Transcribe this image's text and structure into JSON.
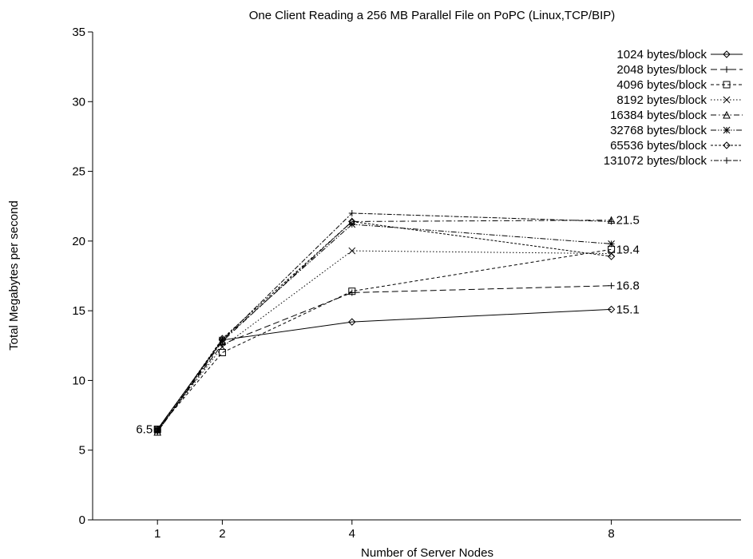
{
  "chart_data": {
    "type": "line",
    "title": "One Client Reading a 256 MB Parallel File on PoPC (Linux,TCP/BIP)",
    "xlabel": "Number of Server Nodes",
    "ylabel": "Total Megabytes per second",
    "x": [
      1,
      2,
      4,
      8
    ],
    "xticks": [
      "1",
      "2",
      "4",
      "8"
    ],
    "xlim": [
      0,
      10
    ],
    "ylim": [
      0,
      35
    ],
    "yticks": [
      "0",
      "5",
      "10",
      "15",
      "20",
      "25",
      "30",
      "35"
    ],
    "grid": false,
    "legend_position": "top-right",
    "series": [
      {
        "name": "1024 bytes/block",
        "values": [
          6.5,
          12.9,
          14.2,
          15.1
        ],
        "marker": "diamond",
        "dash": "solid"
      },
      {
        "name": "2048 bytes/block",
        "values": [
          6.4,
          12.6,
          16.3,
          16.8
        ],
        "marker": "plus",
        "dash": "longdash"
      },
      {
        "name": "4096 bytes/block",
        "values": [
          6.5,
          12.0,
          16.4,
          19.4
        ],
        "marker": "square",
        "dash": "shortdash"
      },
      {
        "name": "8192 bytes/block",
        "values": [
          6.4,
          12.4,
          19.3,
          19.1
        ],
        "marker": "cross",
        "dash": "dotted"
      },
      {
        "name": "16384 bytes/block",
        "values": [
          6.3,
          12.8,
          21.4,
          21.5
        ],
        "marker": "triangle",
        "dash": "dashdot"
      },
      {
        "name": "32768 bytes/block",
        "values": [
          6.5,
          12.9,
          21.2,
          19.8
        ],
        "marker": "star",
        "dash": "dashdotdot"
      },
      {
        "name": "65536 bytes/block",
        "values": [
          6.4,
          13.0,
          21.4,
          18.9
        ],
        "marker": "diamond",
        "dash": "shortdash2"
      },
      {
        "name": "131072 bytes/block",
        "values": [
          6.3,
          12.9,
          22.0,
          21.4
        ],
        "marker": "plus",
        "dash": "dotdash"
      }
    ],
    "annotations": [
      {
        "text": "6.5",
        "x": 1,
        "y": 6.5,
        "side": "left"
      },
      {
        "text": "21.5",
        "x": 8,
        "y": 21.5,
        "side": "right"
      },
      {
        "text": "19.4",
        "x": 8,
        "y": 19.4,
        "side": "right"
      },
      {
        "text": "16.8",
        "x": 8,
        "y": 16.8,
        "side": "right"
      },
      {
        "text": "15.1",
        "x": 8,
        "y": 15.1,
        "side": "right"
      }
    ]
  }
}
